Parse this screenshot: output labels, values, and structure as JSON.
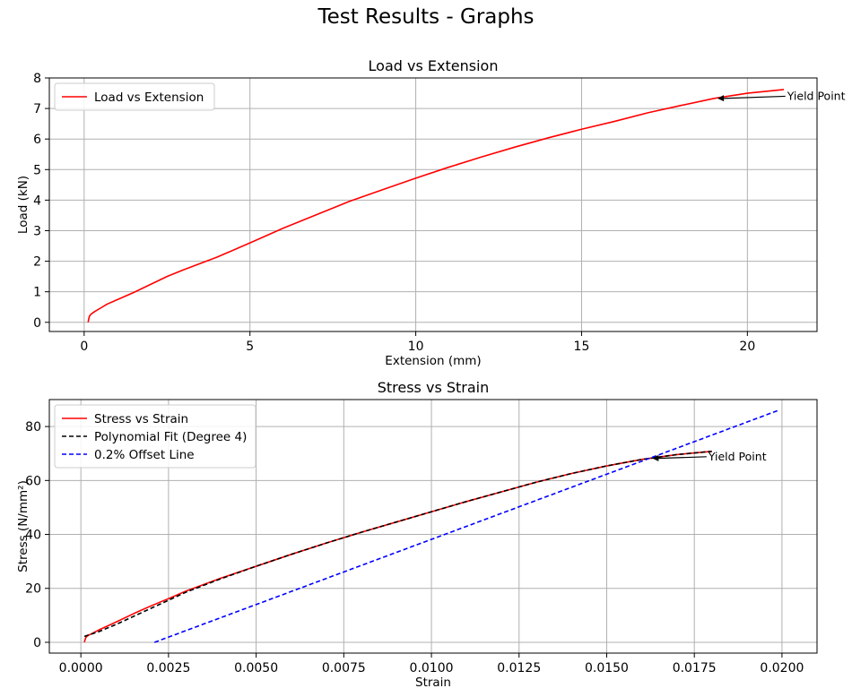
{
  "figure": {
    "title": "Test Results - Graphs"
  },
  "chart_data": [
    {
      "type": "line",
      "title": "Load vs Extension",
      "xlabel": "Extension (mm)",
      "ylabel": "Load (kN)",
      "xlim": [
        -1.05,
        22.1
      ],
      "ylim": [
        -0.3,
        8.0
      ],
      "xticks": [
        0,
        5,
        10,
        15,
        20
      ],
      "xtick_labels": [
        "0",
        "5",
        "10",
        "15",
        "20"
      ],
      "yticks": [
        0,
        1,
        2,
        3,
        4,
        5,
        6,
        7,
        8
      ],
      "ytick_labels": [
        "0",
        "1",
        "2",
        "3",
        "4",
        "5",
        "6",
        "7",
        "8"
      ],
      "grid": true,
      "legend": {
        "placement": "top-left"
      },
      "series": [
        {
          "name": "Load vs Extension",
          "color": "#ff0000",
          "dash": "solid",
          "x": [
            0.12,
            0.14,
            0.16,
            0.2,
            0.3,
            0.5,
            0.7,
            1.0,
            1.5,
            2.0,
            2.5,
            3.0,
            4.0,
            5.0,
            6.0,
            7.0,
            8.0,
            9.0,
            10.0,
            11.0,
            12.0,
            13.0,
            14.0,
            15.0,
            16.0,
            17.0,
            18.0,
            19.0,
            20.0,
            21.1
          ],
          "y": [
            0.0,
            0.12,
            0.2,
            0.26,
            0.34,
            0.47,
            0.6,
            0.74,
            0.98,
            1.24,
            1.5,
            1.72,
            2.13,
            2.6,
            3.08,
            3.52,
            3.96,
            4.34,
            4.72,
            5.08,
            5.42,
            5.74,
            6.04,
            6.32,
            6.58,
            6.86,
            7.1,
            7.33,
            7.5,
            7.62
          ]
        }
      ],
      "annotations": [
        {
          "text": "Yield Point",
          "point": [
            19.1,
            7.33
          ],
          "text_at": [
            21.2,
            7.4
          ]
        }
      ]
    },
    {
      "type": "line",
      "title": "Stress vs Strain",
      "xlabel": "Strain",
      "ylabel": "Stress (N/mm²)",
      "xlim": [
        -0.0009,
        0.021
      ],
      "ylim": [
        -4,
        90
      ],
      "xticks": [
        0.0,
        0.0025,
        0.005,
        0.0075,
        0.01,
        0.0125,
        0.015,
        0.0175,
        0.02
      ],
      "xtick_labels": [
        "0.0000",
        "0.0025",
        "0.0050",
        "0.0075",
        "0.0100",
        "0.0125",
        "0.0150",
        "0.0175",
        "0.0200"
      ],
      "yticks": [
        0,
        20,
        40,
        60,
        80
      ],
      "ytick_labels": [
        "0",
        "20",
        "40",
        "60",
        "80"
      ],
      "grid": true,
      "legend": {
        "placement": "top-left"
      },
      "series": [
        {
          "name": "Stress vs Strain",
          "color": "#ff0000",
          "dash": "solid",
          "x": [
            0.0001,
            0.00012,
            0.00015,
            0.0002,
            0.0005,
            0.001,
            0.0015,
            0.002,
            0.0025,
            0.003,
            0.004,
            0.005,
            0.006,
            0.007,
            0.008,
            0.009,
            0.01,
            0.011,
            0.012,
            0.013,
            0.014,
            0.015,
            0.016,
            0.017,
            0.018
          ],
          "y": [
            0.0,
            1.0,
            2.0,
            2.5,
            4.5,
            7.5,
            10.6,
            13.5,
            16.2,
            19.0,
            23.8,
            28.2,
            32.6,
            36.8,
            40.8,
            44.6,
            48.4,
            52.2,
            55.8,
            59.4,
            62.6,
            65.4,
            67.8,
            69.6,
            70.8
          ]
        },
        {
          "name": "Polynomial Fit (Degree 4)",
          "color": "#000000",
          "dash": "dashed",
          "x": [
            0.0001,
            0.0005,
            0.001,
            0.0015,
            0.002,
            0.0025,
            0.003,
            0.004,
            0.005,
            0.006,
            0.007,
            0.008,
            0.009,
            0.01,
            0.011,
            0.012,
            0.013,
            0.014,
            0.015,
            0.016,
            0.017,
            0.018
          ],
          "y": [
            2.2,
            3.9,
            6.6,
            9.6,
            12.6,
            15.6,
            18.6,
            23.6,
            28.2,
            32.6,
            36.8,
            40.8,
            44.6,
            48.4,
            52.2,
            55.8,
            59.4,
            62.6,
            65.4,
            67.8,
            69.6,
            70.8
          ]
        },
        {
          "name": "0.2% Offset Line",
          "color": "#0000ff",
          "dash": "dashed",
          "x": [
            0.0021,
            0.0199
          ],
          "y": [
            0.0,
            86.0
          ]
        }
      ],
      "annotations": [
        {
          "text": "Yield Point",
          "point": [
            0.0163,
            68.2
          ],
          "text_at": [
            0.0179,
            68.8
          ]
        }
      ]
    }
  ]
}
